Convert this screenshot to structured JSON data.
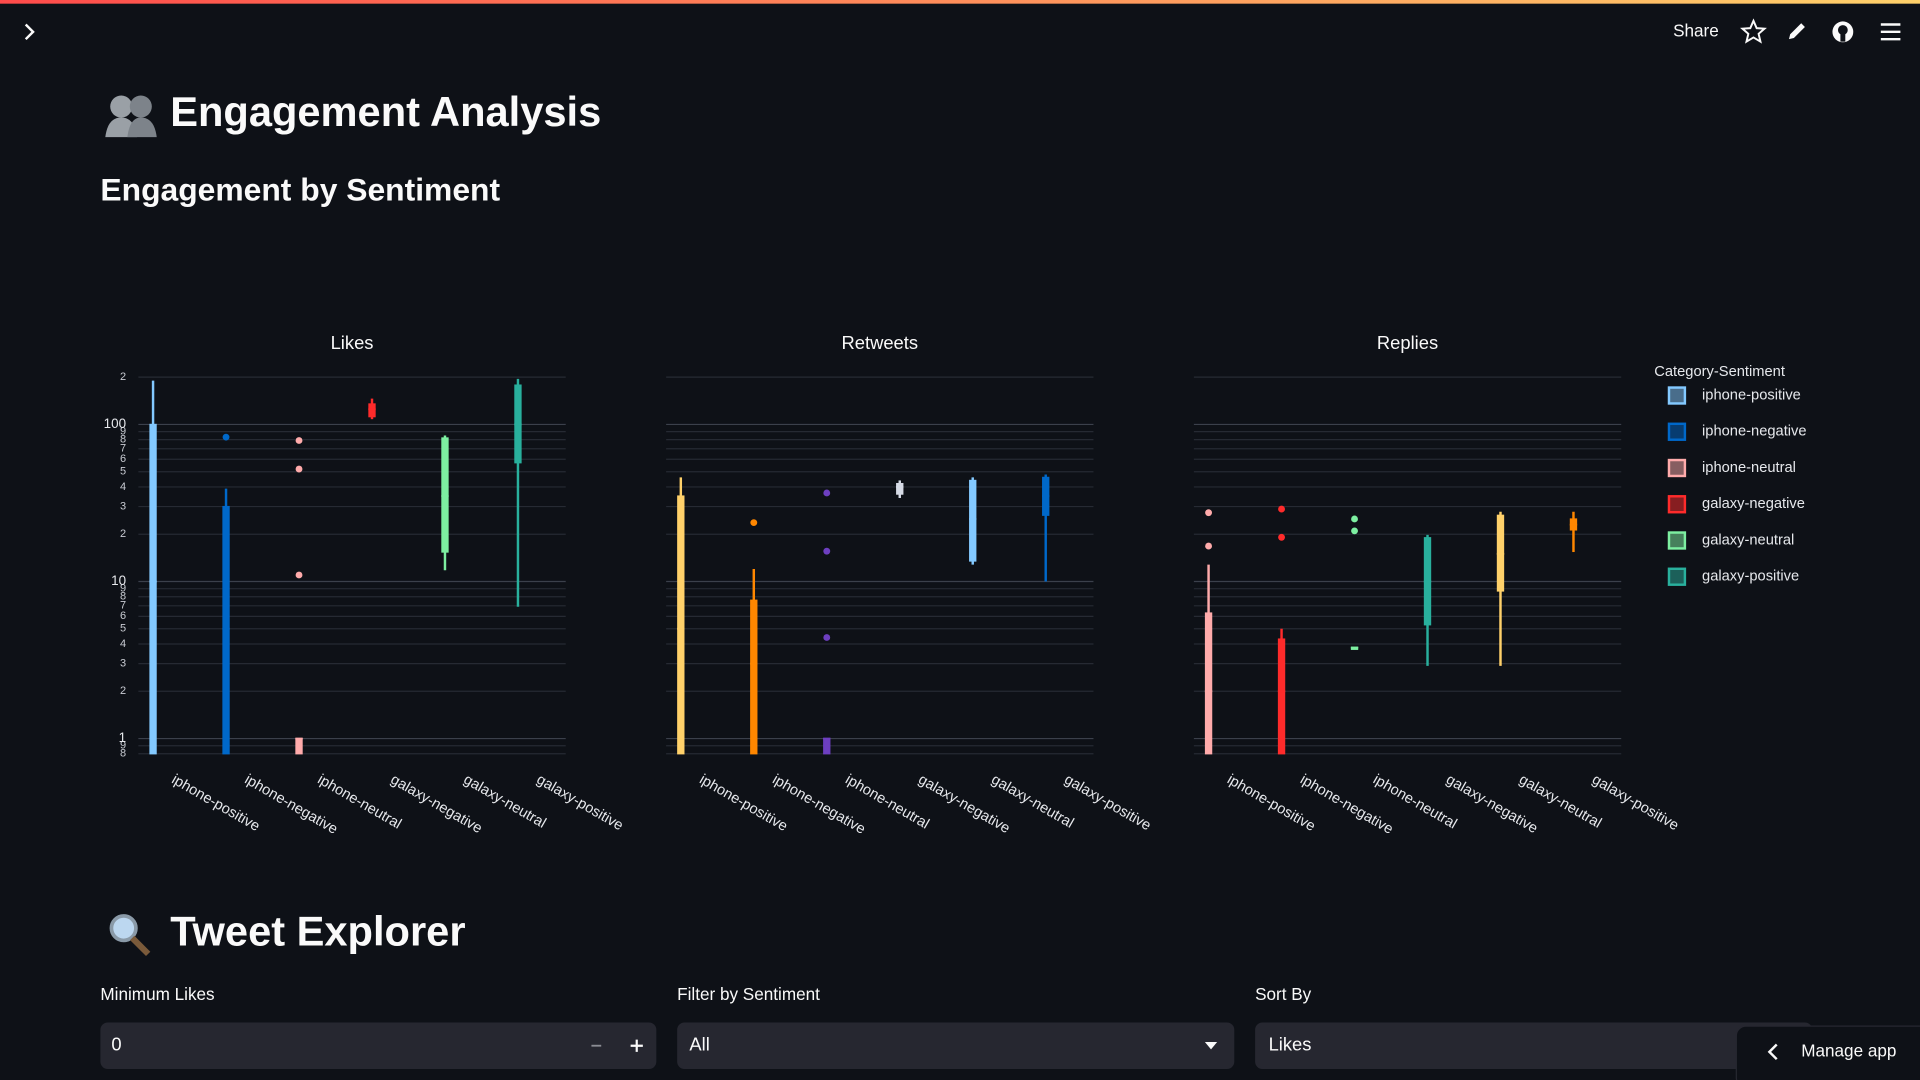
{
  "header": {
    "share": "Share"
  },
  "title": "Engagement Analysis",
  "section_title": "Engagement by Sentiment",
  "chart_data": {
    "type": "box",
    "log_y": true,
    "grid": true,
    "categories": [
      "iphone-positive",
      "iphone-negative",
      "iphone-neutral",
      "galaxy-negative",
      "galaxy-neutral",
      "galaxy-positive"
    ],
    "ylim": [
      0.78,
      200
    ],
    "yticks": [
      {
        "value": 0.8,
        "label": "8"
      },
      {
        "value": 0.9,
        "label": "9"
      },
      1,
      2,
      3,
      4,
      5,
      6,
      7,
      8,
      9,
      10,
      {
        "value": 20,
        "label": "2"
      },
      {
        "value": 30,
        "label": "3"
      },
      {
        "value": 40,
        "label": "4"
      },
      {
        "value": 50,
        "label": "5"
      },
      {
        "value": 60,
        "label": "6"
      },
      {
        "value": 70,
        "label": "7"
      },
      {
        "value": 80,
        "label": "8"
      },
      {
        "value": 90,
        "label": "9"
      },
      100,
      {
        "value": 200,
        "label": "2"
      }
    ],
    "legend": {
      "title": "Category-Sentiment",
      "position": "right"
    },
    "panels": [
      {
        "title": "Likes",
        "boxes": [
          {
            "color": "#83c9ff",
            "low": 0.8,
            "q1": 0.8,
            "median": 10,
            "q3": 100,
            "high": 190
          },
          {
            "color": "#0068c9",
            "low": 0.8,
            "q1": 0.8,
            "median": 5,
            "q3": 30,
            "high": 39,
            "outliers": [
              83
            ]
          },
          {
            "color": "#ffabab",
            "low": 0.8,
            "q1": 0.8,
            "median": 1,
            "q3": 1,
            "high": 1,
            "outliers": [
              79,
              52,
              11
            ]
          },
          {
            "color": "#ff2b2b",
            "low": 108,
            "q1": 112,
            "median": 125,
            "q3": 135,
            "high": 146
          },
          {
            "color": "#7defa1",
            "low": 11.8,
            "q1": 15.4,
            "median": 35,
            "q3": 82,
            "high": 85
          },
          {
            "color": "#29b09d",
            "low": 6.9,
            "q1": 57,
            "median": 100,
            "q3": 178,
            "high": 195
          }
        ]
      },
      {
        "title": "Retweets",
        "boxes": [
          {
            "color": "#ffd16a",
            "low": 0.8,
            "q1": 0.8,
            "median": 5,
            "q3": 35,
            "high": 46
          },
          {
            "color": "#ff8700",
            "low": 0.8,
            "q1": 0.8,
            "median": 3,
            "q3": 7.6,
            "high": 12,
            "outliers": [
              23.7
            ]
          },
          {
            "color": "#6d3fc0",
            "low": 0.8,
            "q1": 0.8,
            "median": 1,
            "q3": 1,
            "high": 1,
            "outliers": [
              36.6,
              15.6,
              4.4
            ]
          },
          {
            "color": "#d5dae5",
            "low": 34,
            "q1": 36,
            "median": 40,
            "q3": 42,
            "high": 44
          },
          {
            "color": "#83c9ff",
            "low": 12.8,
            "q1": 13.5,
            "median": 25,
            "q3": 44,
            "high": 46
          },
          {
            "color": "#0068c9",
            "low": 10,
            "q1": 26.4,
            "median": 35,
            "q3": 46,
            "high": 48
          }
        ]
      },
      {
        "title": "Replies",
        "boxes": [
          {
            "color": "#ffabab",
            "low": 0.8,
            "q1": 0.8,
            "median": 2,
            "q3": 6.3,
            "high": 12.8,
            "outliers": [
              27.4,
              16.8
            ]
          },
          {
            "color": "#ff2b2b",
            "low": 0.8,
            "q1": 0.8,
            "median": 2,
            "q3": 4.3,
            "high": 5,
            "outliers": [
              28.9,
              19.1
            ]
          },
          {
            "color": "#7defa1",
            "low": 3.8,
            "q1": 3.8,
            "median": 3.8,
            "q3": 3.8,
            "high": 3.8,
            "outliers": [
              25,
              21
            ]
          },
          {
            "color": "#29b09d",
            "low": 2.9,
            "q1": 5.3,
            "median": 10,
            "q3": 19,
            "high": 19.8
          },
          {
            "color": "#ffd16a",
            "low": 2.9,
            "q1": 8.7,
            "median": 15,
            "q3": 26.4,
            "high": 27.8
          },
          {
            "color": "#ff8700",
            "low": 15.4,
            "q1": 21.3,
            "median": 23,
            "q3": 25,
            "high": 27.8
          }
        ]
      }
    ]
  },
  "explorer": {
    "title": "Tweet Explorer",
    "controls": [
      {
        "label": "Minimum Likes",
        "value": 0
      },
      {
        "label": "Filter by Sentiment",
        "value": "All"
      },
      {
        "label": "Sort By",
        "value": "Likes"
      }
    ]
  },
  "footer": {
    "manage_app": "Manage app"
  }
}
